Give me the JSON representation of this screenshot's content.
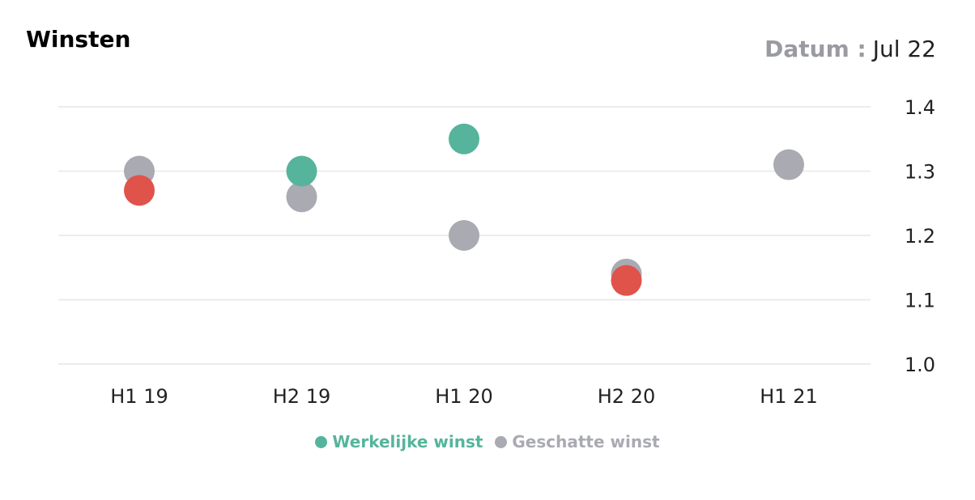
{
  "header": {
    "title": "Winsten",
    "date_label": "Datum :",
    "date_value": "Jul 22"
  },
  "colors": {
    "actual": "#56b49c",
    "estimated": "#a9aab2",
    "miss": "#e0534a",
    "grid": "#ececec"
  },
  "chart_data": {
    "type": "scatter",
    "title": "Winsten",
    "categories": [
      "H1 19",
      "H2 19",
      "H1 20",
      "H2 20",
      "H1 21"
    ],
    "ylim": [
      1.0,
      1.4
    ],
    "yticks": [
      "1.4",
      "1.3",
      "1.2",
      "1.1",
      "1.0"
    ],
    "y_axis_side": "right",
    "grid": true,
    "legend_placement": "bottom-center",
    "series": [
      {
        "name": "Werkelijke winst",
        "values": [
          1.27,
          1.3,
          1.35,
          1.13,
          null
        ],
        "point_colors": [
          "#e0534a",
          "#56b49c",
          "#56b49c",
          "#e0534a",
          null
        ]
      },
      {
        "name": "Geschatte winst",
        "values": [
          1.3,
          1.26,
          1.2,
          1.14,
          1.31
        ]
      }
    ]
  },
  "legend": [
    {
      "label": "Werkelijke winst",
      "color": "#56b49c"
    },
    {
      "label": "Geschatte winst",
      "color": "#a9aab2"
    }
  ]
}
